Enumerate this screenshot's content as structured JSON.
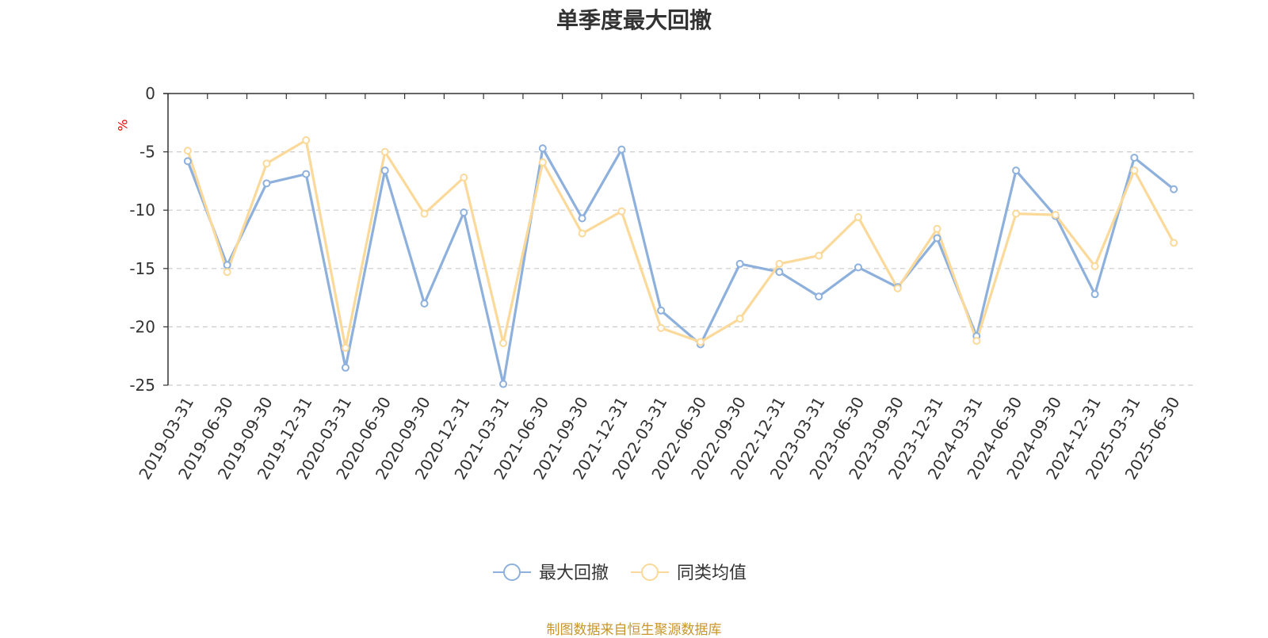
{
  "chart_data": {
    "type": "line",
    "title": "单季度最大回撤",
    "ylabel": "%",
    "ylim": [
      -25,
      0
    ],
    "yticks": [
      0,
      -5,
      -10,
      -15,
      -20,
      -25
    ],
    "grid": true,
    "legend_position": "bottom",
    "categories": [
      "2019-03-31",
      "2019-06-30",
      "2019-09-30",
      "2019-12-31",
      "2020-03-31",
      "2020-06-30",
      "2020-09-30",
      "2020-12-31",
      "2021-03-31",
      "2021-06-30",
      "2021-09-30",
      "2021-12-31",
      "2022-03-31",
      "2022-06-30",
      "2022-09-30",
      "2022-12-31",
      "2023-03-31",
      "2023-06-30",
      "2023-09-30",
      "2023-12-31",
      "2024-03-31",
      "2024-06-30",
      "2024-09-30",
      "2024-12-31",
      "2025-03-31",
      "2025-06-30"
    ],
    "series": [
      {
        "name": "最大回撤",
        "color": "#8eb0dc",
        "values": [
          -5.8,
          -14.7,
          -7.7,
          -6.9,
          -23.5,
          -6.6,
          -18.0,
          -10.2,
          -24.9,
          -4.7,
          -10.7,
          -4.8,
          -18.6,
          -21.5,
          -14.6,
          -15.3,
          -17.4,
          -14.9,
          -16.6,
          -12.4,
          -20.8,
          -6.6,
          -10.5,
          -17.2,
          -5.5,
          -8.2
        ]
      },
      {
        "name": "同类均值",
        "color": "#fbd99a",
        "values": [
          -4.9,
          -15.3,
          -6.0,
          -4.0,
          -21.8,
          -5.0,
          -10.3,
          -7.2,
          -21.4,
          -5.9,
          -12.0,
          -10.1,
          -20.1,
          -21.3,
          -19.3,
          -14.6,
          -13.9,
          -10.6,
          -16.7,
          -11.6,
          -21.2,
          -10.3,
          -10.4,
          -14.8,
          -6.6,
          -12.8
        ]
      }
    ]
  },
  "source_note": "制图数据来自恒生聚源数据库",
  "colors": {
    "source_note": "#c8962a",
    "axis_unit": "#ff0000",
    "grid": "#cccccc",
    "axis": "#333333"
  }
}
